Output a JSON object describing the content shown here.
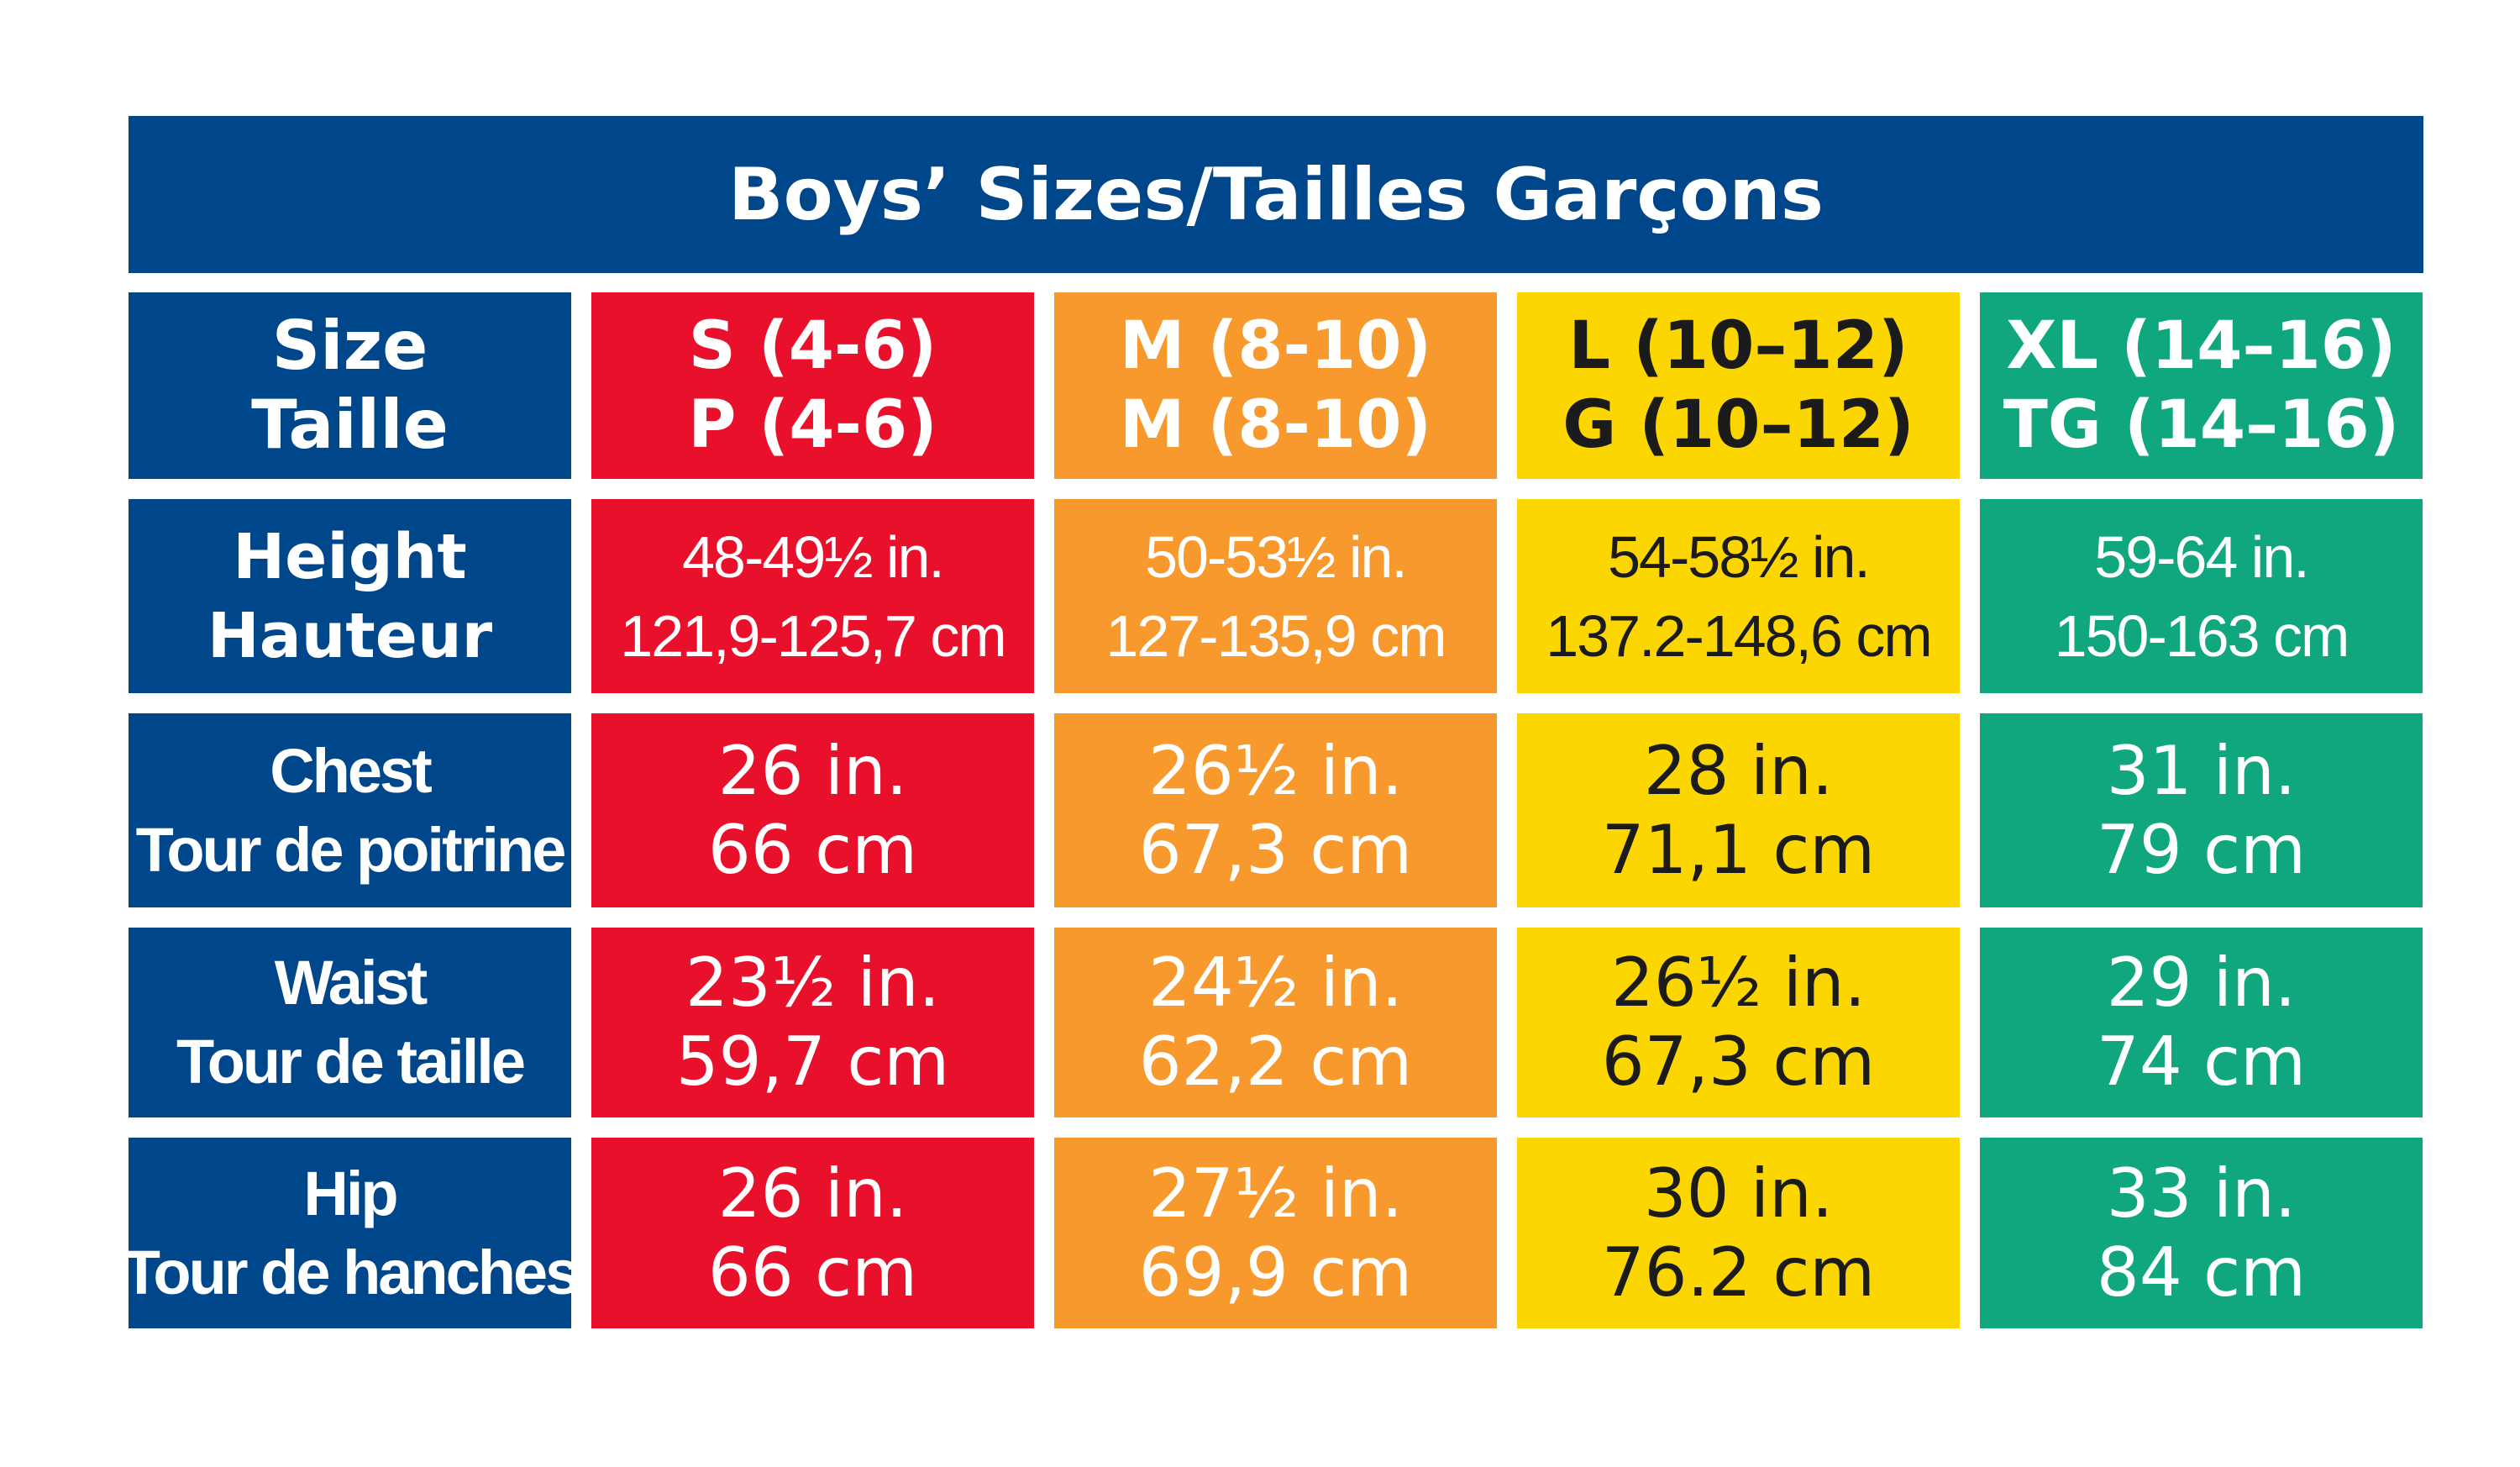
{
  "title": "Boys’ Sizes/Tailles Garçons",
  "colors": {
    "navy": "#00468b",
    "S": "#e8102a",
    "M": "#f7992d",
    "L": "#fbd600",
    "XL": "#10a77f"
  },
  "size_label": {
    "en": "Size",
    "fr": "Taille"
  },
  "sizes": [
    {
      "en": "S (4-6)",
      "fr": "P (4-6)"
    },
    {
      "en": "M (8-10)",
      "fr": "M (8-10)"
    },
    {
      "en": "L (10–12)",
      "fr": "G (10–12)"
    },
    {
      "en": "XL (14–16)",
      "fr": "TG (14–16)"
    }
  ],
  "rows": [
    {
      "label_en": "Height",
      "label_fr": "Hauteur",
      "values": [
        {
          "in": "48-49½ in.",
          "cm": "121,9-125,7 cm"
        },
        {
          "in": "50-53½ in.",
          "cm": "127-135,9 cm"
        },
        {
          "in": "54-58½ in.",
          "cm": "137.2-148,6 cm"
        },
        {
          "in": "59-64 in.",
          "cm": "150-163 cm"
        }
      ]
    },
    {
      "label_en": "Chest",
      "label_fr": "Tour de poitrine",
      "values": [
        {
          "in": "26 in.",
          "cm": "66 cm"
        },
        {
          "in": "26½ in.",
          "cm": "67,3 cm"
        },
        {
          "in": "28 in.",
          "cm": "71,1 cm"
        },
        {
          "in": "31 in.",
          "cm": "79 cm"
        }
      ]
    },
    {
      "label_en": "Waist",
      "label_fr": "Tour de taille",
      "values": [
        {
          "in": "23½ in.",
          "cm": "59,7 cm"
        },
        {
          "in": "24½ in.",
          "cm": "62,2 cm"
        },
        {
          "in": "26½ in.",
          "cm": "67,3 cm"
        },
        {
          "in": "29 in.",
          "cm": "74 cm"
        }
      ]
    },
    {
      "label_en": "Hip",
      "label_fr": "Tour de hanches",
      "values": [
        {
          "in": "26 in.",
          "cm": "66 cm"
        },
        {
          "in": "27½ in.",
          "cm": "69,9 cm"
        },
        {
          "in": "30 in.",
          "cm": "76.2 cm"
        },
        {
          "in": "33 in.",
          "cm": "84 cm"
        }
      ]
    }
  ]
}
